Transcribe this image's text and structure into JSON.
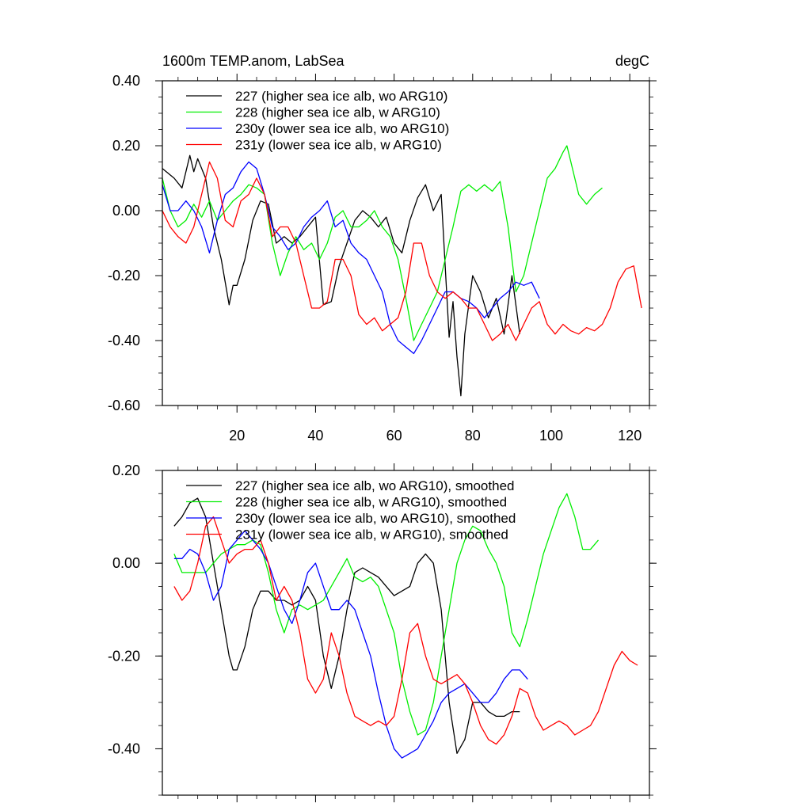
{
  "chart_data": [
    {
      "type": "line",
      "title": "1600m TEMP.anom, LabSea",
      "units": "degC",
      "xlim": [
        1,
        125
      ],
      "ylim": [
        -0.6,
        0.4
      ],
      "xticks": [
        20,
        40,
        60,
        80,
        100,
        120
      ],
      "xtick_labels": [
        "20",
        "40",
        "60",
        "80",
        "100",
        "120"
      ],
      "yticks": [
        -0.6,
        -0.4,
        -0.2,
        0.0,
        0.2,
        0.4
      ],
      "ytick_labels": [
        "-0.60",
        "-0.40",
        "-0.20",
        "0.00",
        "0.20",
        "0.40"
      ],
      "legend_position": "top-left",
      "series": [
        {
          "name": "227 (higher sea ice alb, wo ARG10)",
          "color": "#000000",
          "x": [
            1,
            4,
            6,
            8,
            9,
            10,
            12,
            14,
            16,
            18,
            19,
            20,
            22,
            24,
            26,
            28,
            30,
            32,
            34,
            36,
            38,
            40,
            42,
            44,
            46,
            48,
            50,
            52,
            54,
            56,
            58,
            60,
            62,
            64,
            66,
            68,
            70,
            72,
            74,
            75,
            76,
            77,
            78,
            80,
            82,
            84,
            86,
            88,
            90,
            92
          ],
          "y": [
            0.13,
            0.1,
            0.07,
            0.17,
            0.12,
            0.16,
            0.1,
            -0.05,
            -0.15,
            -0.29,
            -0.23,
            -0.23,
            -0.15,
            -0.03,
            0.03,
            0.02,
            -0.1,
            -0.08,
            -0.1,
            -0.08,
            -0.05,
            -0.02,
            -0.29,
            -0.28,
            -0.17,
            -0.1,
            -0.03,
            0.0,
            -0.02,
            -0.05,
            -0.02,
            -0.1,
            -0.13,
            -0.03,
            0.04,
            0.08,
            0.0,
            0.05,
            -0.39,
            -0.28,
            -0.45,
            -0.57,
            -0.38,
            -0.2,
            -0.25,
            -0.33,
            -0.27,
            -0.38,
            -0.2,
            -0.38
          ]
        },
        {
          "name": "228 (higher sea ice alb, w ARG10)",
          "color": "#00ee00",
          "x": [
            1,
            3,
            5,
            7,
            9,
            11,
            13,
            15,
            17,
            19,
            21,
            23,
            25,
            27,
            29,
            31,
            33,
            35,
            37,
            39,
            41,
            43,
            45,
            47,
            49,
            51,
            53,
            55,
            57,
            59,
            61,
            63,
            65,
            67,
            69,
            71,
            73,
            75,
            77,
            79,
            81,
            83,
            85,
            87,
            89,
            91,
            93,
            95,
            97,
            99,
            101,
            103,
            104,
            105,
            107,
            109,
            111,
            113
          ],
          "y": [
            0.1,
            0.0,
            -0.05,
            -0.03,
            0.02,
            -0.02,
            0.03,
            -0.03,
            0.0,
            0.03,
            0.05,
            0.08,
            0.07,
            0.05,
            -0.1,
            -0.2,
            -0.13,
            -0.08,
            -0.12,
            -0.1,
            -0.15,
            -0.1,
            -0.02,
            0.0,
            -0.05,
            -0.05,
            -0.03,
            0.0,
            -0.05,
            -0.08,
            -0.15,
            -0.27,
            -0.4,
            -0.35,
            -0.3,
            -0.25,
            -0.15,
            -0.05,
            0.06,
            0.08,
            0.06,
            0.08,
            0.06,
            0.09,
            -0.05,
            -0.25,
            -0.2,
            -0.1,
            0.0,
            0.1,
            0.13,
            0.18,
            0.2,
            0.15,
            0.05,
            0.02,
            0.05,
            0.07
          ]
        },
        {
          "name": "230y (lower sea ice alb, wo ARG10)",
          "color": "#0000ff",
          "x": [
            1,
            3,
            5,
            7,
            9,
            11,
            13,
            15,
            17,
            19,
            21,
            23,
            25,
            27,
            29,
            31,
            33,
            35,
            37,
            39,
            41,
            43,
            45,
            47,
            49,
            51,
            53,
            55,
            57,
            59,
            61,
            63,
            65,
            67,
            69,
            71,
            73,
            75,
            77,
            79,
            81,
            83,
            85,
            87,
            89,
            91,
            93,
            95,
            97
          ],
          "y": [
            0.08,
            0.0,
            0.0,
            0.03,
            0.0,
            -0.05,
            -0.13,
            -0.03,
            0.05,
            0.07,
            0.12,
            0.15,
            0.13,
            0.05,
            -0.05,
            -0.08,
            -0.12,
            -0.1,
            -0.05,
            -0.02,
            0.0,
            0.03,
            -0.05,
            -0.03,
            -0.1,
            -0.13,
            -0.15,
            -0.2,
            -0.25,
            -0.35,
            -0.4,
            -0.42,
            -0.44,
            -0.4,
            -0.35,
            -0.3,
            -0.25,
            -0.25,
            -0.27,
            -0.28,
            -0.3,
            -0.33,
            -0.3,
            -0.27,
            -0.25,
            -0.22,
            -0.23,
            -0.22,
            -0.27
          ]
        },
        {
          "name": "231y (lower sea ice alb, w ARG10)",
          "color": "#ff0000",
          "x": [
            1,
            3,
            5,
            7,
            9,
            11,
            13,
            15,
            17,
            19,
            21,
            23,
            25,
            27,
            29,
            31,
            33,
            35,
            37,
            39,
            41,
            43,
            45,
            47,
            49,
            51,
            53,
            55,
            57,
            59,
            61,
            63,
            65,
            67,
            69,
            71,
            73,
            75,
            77,
            79,
            81,
            83,
            85,
            87,
            89,
            91,
            93,
            95,
            97,
            99,
            101,
            103,
            105,
            107,
            109,
            111,
            113,
            115,
            117,
            119,
            121,
            123
          ],
          "y": [
            0.0,
            -0.05,
            -0.08,
            -0.1,
            -0.05,
            0.05,
            0.15,
            0.1,
            -0.03,
            -0.05,
            0.03,
            0.05,
            0.1,
            0.05,
            -0.08,
            -0.05,
            -0.05,
            -0.1,
            -0.2,
            -0.3,
            -0.3,
            -0.28,
            -0.15,
            -0.15,
            -0.2,
            -0.32,
            -0.35,
            -0.33,
            -0.37,
            -0.35,
            -0.33,
            -0.25,
            -0.1,
            -0.1,
            -0.2,
            -0.25,
            -0.27,
            -0.25,
            -0.27,
            -0.3,
            -0.3,
            -0.35,
            -0.4,
            -0.38,
            -0.35,
            -0.4,
            -0.35,
            -0.3,
            -0.28,
            -0.35,
            -0.38,
            -0.35,
            -0.37,
            -0.38,
            -0.36,
            -0.37,
            -0.35,
            -0.3,
            -0.22,
            -0.18,
            -0.17,
            -0.3
          ]
        }
      ]
    },
    {
      "type": "line",
      "title": "",
      "xlim": [
        1,
        125
      ],
      "ylim": [
        -0.5,
        0.2
      ],
      "xticks": [
        20,
        40,
        60,
        80,
        100,
        120
      ],
      "xtick_labels": [],
      "yticks": [
        -0.4,
        -0.2,
        0.0,
        0.2
      ],
      "ytick_labels": [
        "-0.40",
        "-0.20",
        "0.00",
        "0.20"
      ],
      "legend_position": "top-left",
      "series": [
        {
          "name": "227 (higher sea ice alb, wo ARG10), smoothed",
          "color": "#000000",
          "x": [
            4,
            6,
            8,
            10,
            12,
            14,
            16,
            18,
            19,
            20,
            22,
            24,
            26,
            28,
            30,
            32,
            34,
            36,
            38,
            40,
            42,
            44,
            46,
            48,
            50,
            52,
            54,
            56,
            58,
            60,
            62,
            64,
            66,
            68,
            70,
            72,
            74,
            76,
            78,
            80,
            82,
            84,
            86,
            88,
            90,
            92
          ],
          "y": [
            0.08,
            0.1,
            0.13,
            0.14,
            0.1,
            0.0,
            -0.1,
            -0.2,
            -0.23,
            -0.23,
            -0.18,
            -0.1,
            -0.06,
            -0.06,
            -0.08,
            -0.08,
            -0.09,
            -0.08,
            -0.05,
            -0.08,
            -0.2,
            -0.27,
            -0.2,
            -0.1,
            -0.02,
            -0.01,
            -0.02,
            -0.03,
            -0.05,
            -0.07,
            -0.06,
            -0.05,
            0.0,
            0.02,
            0.0,
            -0.1,
            -0.3,
            -0.41,
            -0.38,
            -0.3,
            -0.3,
            -0.32,
            -0.33,
            -0.33,
            -0.32,
            -0.32
          ]
        },
        {
          "name": "228 (higher sea ice alb, w ARG10), smoothed",
          "color": "#00ee00",
          "x": [
            4,
            6,
            8,
            10,
            12,
            14,
            16,
            18,
            20,
            22,
            24,
            26,
            28,
            30,
            32,
            34,
            36,
            38,
            40,
            42,
            44,
            46,
            48,
            50,
            52,
            54,
            56,
            58,
            60,
            62,
            64,
            66,
            68,
            70,
            72,
            74,
            76,
            78,
            80,
            82,
            84,
            86,
            88,
            90,
            92,
            94,
            96,
            98,
            100,
            102,
            104,
            106,
            108,
            110,
            112
          ],
          "y": [
            0.02,
            -0.02,
            -0.02,
            -0.02,
            -0.02,
            0.0,
            0.02,
            0.03,
            0.04,
            0.04,
            0.05,
            0.04,
            -0.02,
            -0.1,
            -0.15,
            -0.1,
            -0.09,
            -0.1,
            -0.09,
            -0.08,
            -0.05,
            -0.02,
            0.01,
            -0.03,
            -0.04,
            -0.03,
            -0.05,
            -0.1,
            -0.15,
            -0.25,
            -0.32,
            -0.37,
            -0.36,
            -0.3,
            -0.2,
            -0.1,
            0.0,
            0.05,
            0.08,
            0.07,
            0.03,
            0.0,
            -0.05,
            -0.15,
            -0.18,
            -0.12,
            -0.05,
            0.02,
            0.07,
            0.12,
            0.15,
            0.1,
            0.03,
            0.03,
            0.05
          ]
        },
        {
          "name": "230y (lower sea ice alb, wo ARG10), smoothed",
          "color": "#0000ff",
          "x": [
            4,
            6,
            8,
            10,
            12,
            14,
            16,
            18,
            20,
            22,
            24,
            26,
            28,
            30,
            32,
            34,
            36,
            38,
            40,
            42,
            44,
            46,
            48,
            50,
            52,
            54,
            56,
            58,
            60,
            62,
            64,
            66,
            68,
            70,
            72,
            74,
            76,
            78,
            80,
            82,
            84,
            86,
            88,
            90,
            92,
            94
          ],
          "y": [
            0.01,
            0.01,
            0.03,
            0.02,
            -0.02,
            -0.08,
            -0.05,
            0.03,
            0.05,
            0.07,
            0.05,
            0.03,
            0.0,
            -0.05,
            -0.1,
            -0.13,
            -0.08,
            -0.02,
            0.0,
            -0.05,
            -0.1,
            -0.1,
            -0.08,
            -0.1,
            -0.15,
            -0.2,
            -0.28,
            -0.35,
            -0.4,
            -0.42,
            -0.41,
            -0.4,
            -0.37,
            -0.34,
            -0.3,
            -0.28,
            -0.27,
            -0.26,
            -0.28,
            -0.3,
            -0.3,
            -0.28,
            -0.25,
            -0.23,
            -0.23,
            -0.25
          ]
        },
        {
          "name": "231y (lower sea ice alb, w ARG10), smoothed",
          "color": "#ff0000",
          "x": [
            4,
            6,
            8,
            10,
            12,
            14,
            16,
            18,
            20,
            22,
            24,
            26,
            28,
            30,
            32,
            34,
            36,
            38,
            40,
            42,
            44,
            46,
            48,
            50,
            52,
            54,
            56,
            58,
            60,
            62,
            64,
            66,
            68,
            70,
            72,
            74,
            76,
            78,
            80,
            82,
            84,
            86,
            88,
            90,
            92,
            94,
            96,
            98,
            100,
            102,
            104,
            106,
            108,
            110,
            112,
            114,
            116,
            118,
            120,
            122
          ],
          "y": [
            -0.05,
            -0.08,
            -0.06,
            0.0,
            0.08,
            0.1,
            0.05,
            0.0,
            0.02,
            0.03,
            0.03,
            0.05,
            0.0,
            -0.08,
            -0.05,
            -0.08,
            -0.15,
            -0.25,
            -0.28,
            -0.25,
            -0.15,
            -0.2,
            -0.28,
            -0.33,
            -0.34,
            -0.35,
            -0.34,
            -0.35,
            -0.33,
            -0.25,
            -0.15,
            -0.13,
            -0.2,
            -0.25,
            -0.26,
            -0.25,
            -0.24,
            -0.26,
            -0.3,
            -0.35,
            -0.38,
            -0.39,
            -0.37,
            -0.33,
            -0.27,
            -0.28,
            -0.33,
            -0.36,
            -0.35,
            -0.34,
            -0.35,
            -0.37,
            -0.36,
            -0.35,
            -0.32,
            -0.27,
            -0.22,
            -0.19,
            -0.21,
            -0.22
          ]
        }
      ]
    }
  ]
}
